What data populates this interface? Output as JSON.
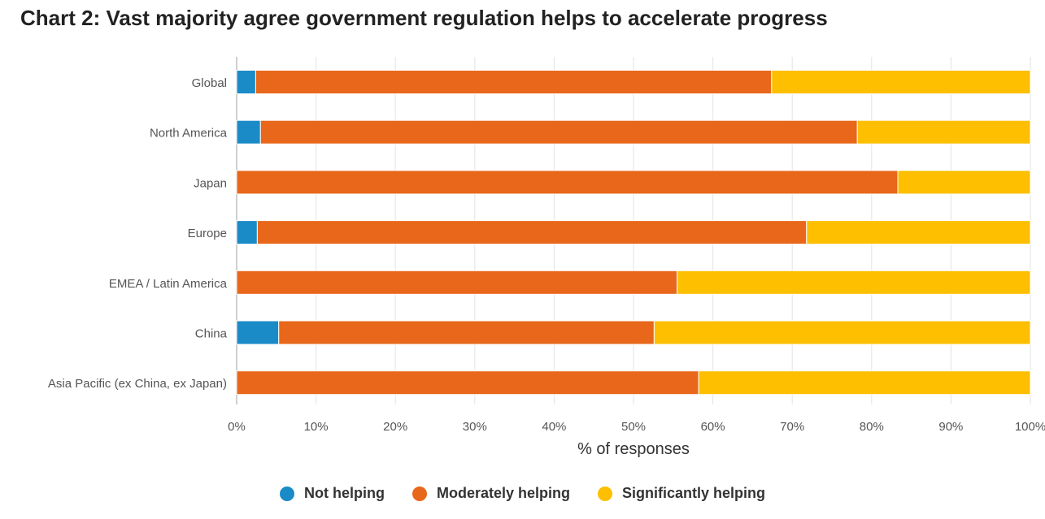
{
  "chart_data": {
    "type": "bar",
    "orientation": "horizontal",
    "stacked": true,
    "title": "Chart 2: Vast majority agree government regulation helps to accelerate progress",
    "xlabel": "% of responses",
    "ylabel": "",
    "xlim": [
      0,
      100
    ],
    "x_ticks": [
      "0%",
      "10%",
      "20%",
      "30%",
      "40%",
      "50%",
      "60%",
      "70%",
      "80%",
      "90%",
      "100%"
    ],
    "grid": true,
    "legend_position": "bottom",
    "categories": [
      "Global",
      "North America",
      "Japan",
      "Europe",
      "EMEA / Latin America",
      "China",
      "Asia Pacific (ex China, ex Japan)"
    ],
    "series": [
      {
        "name": "Not helping",
        "color": "#1b8bc8",
        "values": [
          2.4,
          3.0,
          0,
          2.6,
          0,
          5.3,
          0
        ]
      },
      {
        "name": "Moderately helping",
        "color": "#e8671a",
        "values": [
          65.0,
          75.2,
          83.3,
          69.2,
          55.5,
          47.3,
          58.2
        ]
      },
      {
        "name": "Significantly helping",
        "color": "#fdbf00",
        "values": [
          32.6,
          21.8,
          16.7,
          28.2,
          44.5,
          47.4,
          41.8
        ]
      }
    ]
  }
}
